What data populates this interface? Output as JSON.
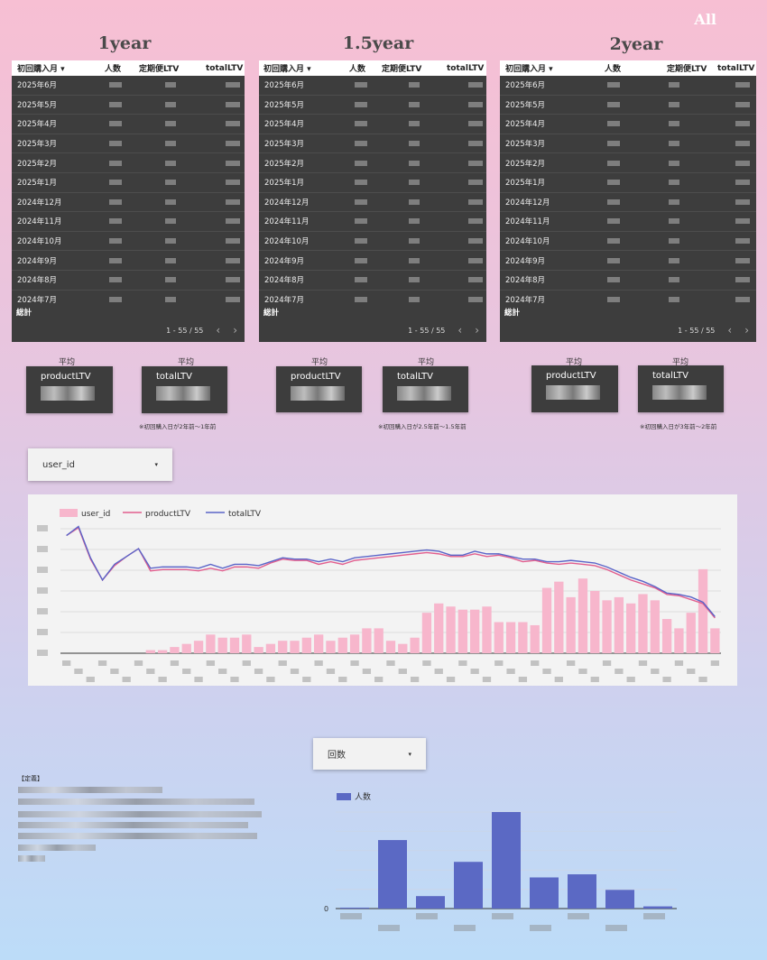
{
  "corner_label": "All",
  "periods": [
    {
      "title": "1year",
      "note": "※初回購入日が2年前〜1年前",
      "product_title": "productLTV",
      "total_title": "totalLTV"
    },
    {
      "title": "1.5year",
      "note": "※初回購入日が2.5年前〜1.5年前",
      "product_title": "productLTV",
      "total_title": "totalLTV"
    },
    {
      "title": "2year",
      "note": "※初回購入日が3年前〜2年前",
      "product_title": "productLTV",
      "total_title": "totalLTV"
    }
  ],
  "table": {
    "headers": {
      "month": "初回購入月 ▾",
      "count": "人数",
      "sub_ltv": "定期便LTV",
      "total_ltv": "totalLTV"
    },
    "months": [
      "2025年6月",
      "2025年5月",
      "2025年4月",
      "2025年3月",
      "2025年2月",
      "2025年1月",
      "2024年12月",
      "2024年11月",
      "2024年10月",
      "2024年9月",
      "2024年8月",
      "2024年7月"
    ],
    "total_label": "総計",
    "pagination": "1 - 55 / 55",
    "prev": "‹",
    "next": "›"
  },
  "avg_label": "平均",
  "dropdown1": {
    "label": "user_id",
    "arrow": "▾"
  },
  "dropdown2": {
    "label": "回数",
    "arrow": "▾"
  },
  "definition_title": "【定義】",
  "chart_data": [
    {
      "type": "bar",
      "legend": [
        "user_id",
        "productLTV",
        "totalLTV"
      ],
      "colors": {
        "bar": "#f7b6cc",
        "product": "#e15e8e",
        "total": "#5a64c8"
      },
      "bars": [
        0,
        0,
        0,
        0,
        0,
        0,
        0,
        1,
        1,
        2,
        3,
        4,
        6,
        5,
        5,
        6,
        2,
        3,
        4,
        4,
        5,
        6,
        4,
        5,
        6,
        8,
        8,
        4,
        3,
        5,
        13,
        16,
        15,
        14,
        14,
        15,
        10,
        10,
        10,
        9,
        21,
        23,
        18,
        24,
        20,
        17,
        18,
        16,
        19,
        17,
        11,
        8,
        13,
        27,
        8
      ],
      "product": [
        90,
        96,
        72,
        56,
        67,
        74,
        80,
        63,
        64,
        64,
        64,
        63,
        65,
        63,
        66,
        66,
        65,
        69,
        72,
        71,
        71,
        68,
        70,
        68,
        71,
        72,
        73,
        74,
        75,
        76,
        77,
        76,
        74,
        74,
        76,
        74,
        75,
        73,
        70,
        71,
        69,
        68,
        69,
        68,
        67,
        64,
        60,
        56,
        53,
        50,
        45,
        44,
        41,
        38,
        27
      ],
      "total": [
        90,
        97,
        73,
        56,
        68,
        74,
        80,
        65,
        66,
        66,
        66,
        65,
        68,
        65,
        68,
        68,
        67,
        70,
        73,
        72,
        72,
        70,
        72,
        70,
        73,
        74,
        75,
        76,
        77,
        78,
        79,
        78,
        75,
        75,
        78,
        76,
        76,
        74,
        72,
        72,
        70,
        70,
        71,
        70,
        69,
        66,
        62,
        58,
        55,
        51,
        46,
        45,
        43,
        39,
        28
      ]
    },
    {
      "type": "bar",
      "legend": [
        "人数"
      ],
      "colors": {
        "bar": "#5b69c4"
      },
      "zero_label": "0",
      "values": [
        0.3,
        22,
        4,
        15,
        31,
        10,
        11,
        6,
        0.7
      ]
    }
  ]
}
